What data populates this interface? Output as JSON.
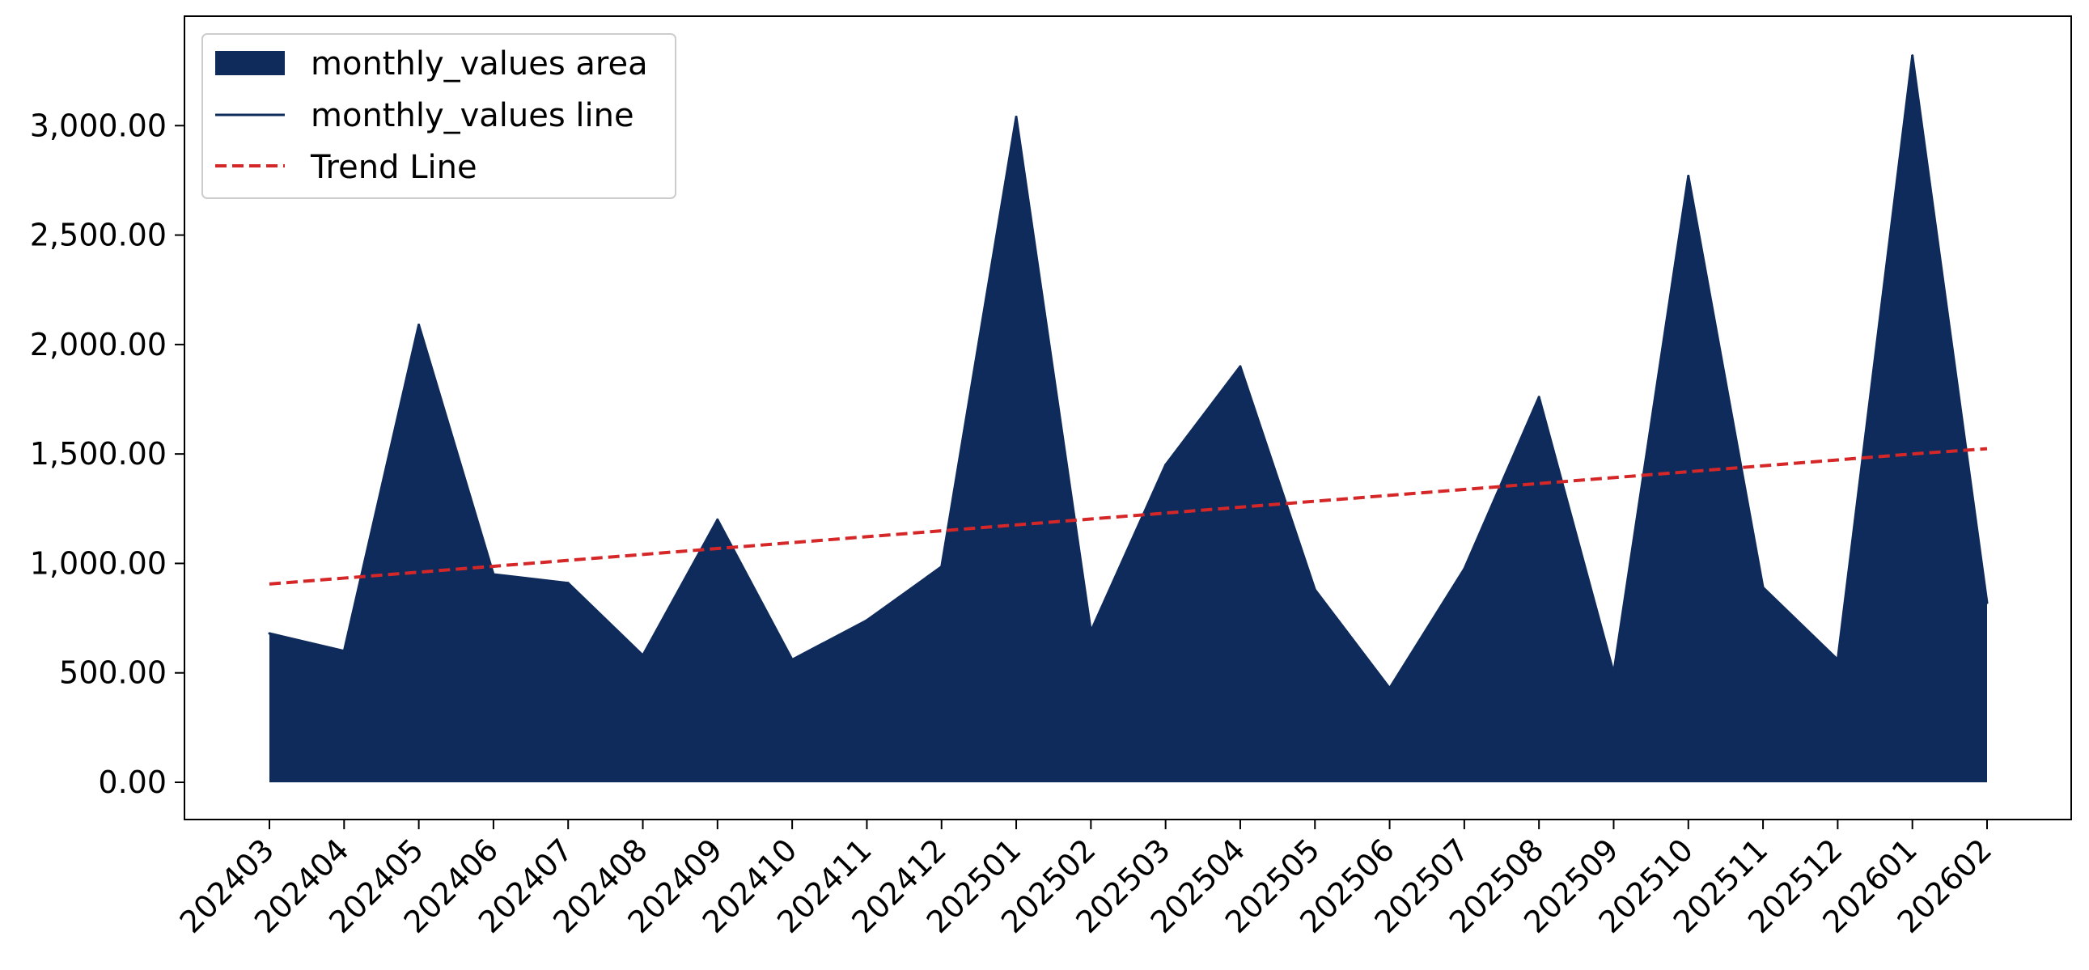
{
  "chart_data": {
    "type": "area",
    "title": "",
    "xlabel": "",
    "ylabel": "",
    "categories": [
      "202403",
      "202404",
      "202405",
      "202406",
      "202407",
      "202408",
      "202409",
      "202410",
      "202411",
      "202412",
      "202501",
      "202502",
      "202503",
      "202504",
      "202505",
      "202506",
      "202507",
      "202508",
      "202509",
      "202510",
      "202511",
      "202512",
      "202601",
      "202602"
    ],
    "series": [
      {
        "name": "monthly_values area",
        "kind": "area",
        "color": "#0f2b5b",
        "values": [
          680,
          600,
          2090,
          950,
          910,
          580,
          1200,
          560,
          740,
          985,
          3040,
          690,
          1450,
          1900,
          880,
          430,
          975,
          1760,
          500,
          2770,
          890,
          560,
          3320,
          820
        ]
      },
      {
        "name": "monthly_values line",
        "kind": "line",
        "color": "#0f2b5b",
        "values": [
          680,
          600,
          2090,
          950,
          910,
          580,
          1200,
          560,
          740,
          985,
          3040,
          690,
          1450,
          1900,
          880,
          430,
          975,
          1760,
          500,
          2770,
          890,
          560,
          3320,
          820
        ]
      },
      {
        "name": "Trend Line",
        "kind": "line",
        "style": "dashed",
        "color": "#d62728",
        "values": [
          906,
          933,
          960,
          987,
          1014,
          1041,
          1068,
          1095,
          1122,
          1149,
          1176,
          1203,
          1230,
          1257,
          1284,
          1311,
          1338,
          1365,
          1392,
          1419,
          1446,
          1473,
          1500,
          1524
        ]
      }
    ],
    "y_ticks": [
      "0.00",
      "500.00",
      "1,000.00",
      "1,500.00",
      "2,000.00",
      "2,500.00",
      "3,000.00"
    ],
    "y_tick_values": [
      0,
      500,
      1000,
      1500,
      2000,
      2500,
      3000
    ],
    "ylim": [
      -170,
      3500
    ],
    "grid": false,
    "legend_position": "top-left"
  }
}
